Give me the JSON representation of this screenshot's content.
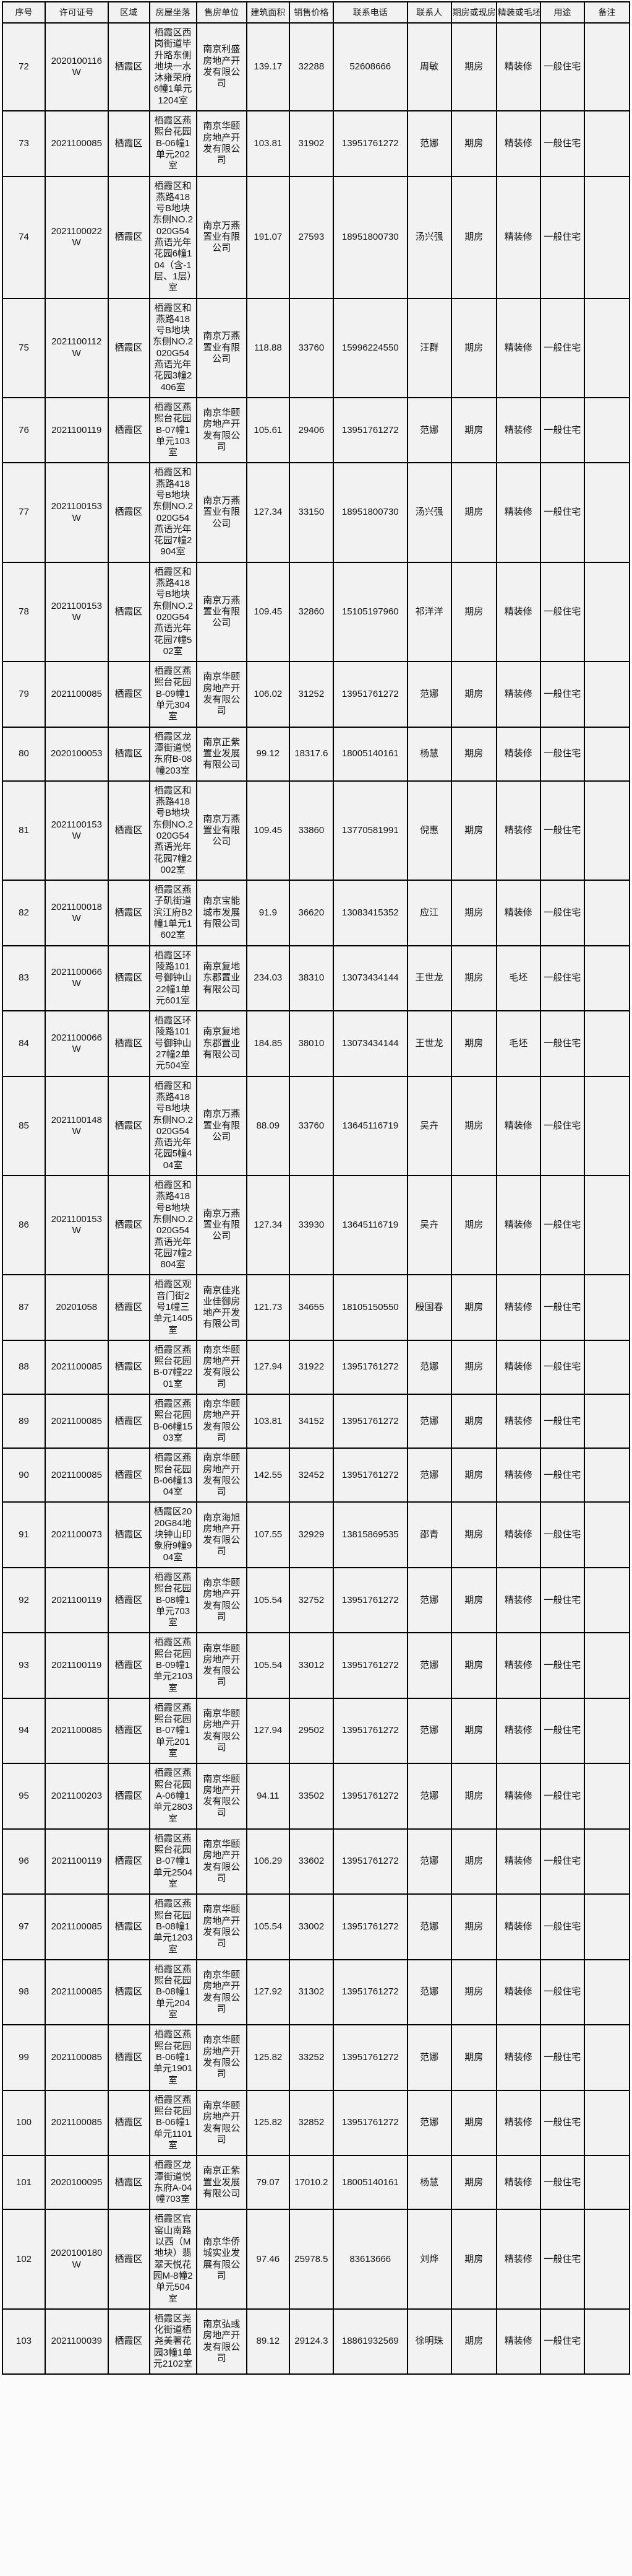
{
  "table": {
    "headers": [
      "序号",
      "许可证号",
      "区域",
      "房屋坐落",
      "售房单位",
      "建筑面积",
      "销售价格",
      "联系电话",
      "联系人",
      "期房或现房",
      "精装或毛坯",
      "用途",
      "备注"
    ],
    "col_keys": [
      "no",
      "license",
      "district",
      "address",
      "company",
      "area",
      "price",
      "phone",
      "contact",
      "delivery",
      "decoration",
      "usage",
      "remark"
    ],
    "rows": [
      [
        "72",
        "2020100116W",
        "栖霞区",
        "栖霞区西岗街道毕升路东侧地块一水沐雍荣府6幢1单元1204室",
        "南京利盛房地产开发有限公司",
        "139.17",
        "32288",
        "52608666",
        "周敏",
        "期房",
        "精装修",
        "一般住宅",
        ""
      ],
      [
        "73",
        "2021100085",
        "栖霞区",
        "栖霞区燕熙台花园B-06幢1单元202室",
        "南京华颐房地产开发有限公司",
        "103.81",
        "31902",
        "13951761272",
        "范娜",
        "期房",
        "精装修",
        "一般住宅",
        ""
      ],
      [
        "74",
        "2021100022W",
        "栖霞区",
        "栖霞区和燕路418号B地块东侧NO.2020G54燕语光年花园6幢104（含-1层、1层）室",
        "南京万燕置业有限公司",
        "191.07",
        "27593",
        "18951800730",
        "汤兴强",
        "期房",
        "精装修",
        "一般住宅",
        ""
      ],
      [
        "75",
        "2021100112W",
        "栖霞区",
        "栖霞区和燕路418号B地块东侧NO.2020G54燕语光年花园3幢2406室",
        "南京万燕置业有限公司",
        "118.88",
        "33760",
        "15996224550",
        "汪群",
        "期房",
        "精装修",
        "一般住宅",
        ""
      ],
      [
        "76",
        "2021100119",
        "栖霞区",
        "栖霞区燕熙台花园B-07幢1单元103室",
        "南京华颐房地产开发有限公司",
        "105.61",
        "29406",
        "13951761272",
        "范娜",
        "期房",
        "精装修",
        "一般住宅",
        ""
      ],
      [
        "77",
        "2021100153W",
        "栖霞区",
        "栖霞区和燕路418号B地块东侧NO.2020G54燕语光年花园7幢2904室",
        "南京万燕置业有限公司",
        "127.34",
        "33150",
        "18951800730",
        "汤兴强",
        "期房",
        "精装修",
        "一般住宅",
        ""
      ],
      [
        "78",
        "2021100153W",
        "栖霞区",
        "栖霞区和燕路418号B地块东侧NO.2020G54燕语光年花园7幢502室",
        "南京万燕置业有限公司",
        "109.45",
        "32860",
        "15105197960",
        "祁洋洋",
        "期房",
        "精装修",
        "一般住宅",
        ""
      ],
      [
        "79",
        "2021100085",
        "栖霞区",
        "栖霞区燕熙台花园B-09幢1单元304室",
        "南京华颐房地产开发有限公司",
        "106.02",
        "31252",
        "13951761272",
        "范娜",
        "期房",
        "精装修",
        "一般住宅",
        ""
      ],
      [
        "80",
        "2020100053",
        "栖霞区",
        "栖霞区龙潭街道悦东府B-08幢203室",
        "南京正紫置业发展有限公司",
        "99.12",
        "18317.6",
        "18005140161",
        "杨慧",
        "期房",
        "精装修",
        "一般住宅",
        ""
      ],
      [
        "81",
        "2021100153W",
        "栖霞区",
        "栖霞区和燕路418号B地块东侧NO.2020G54燕语光年花园7幢2002室",
        "南京万燕置业有限公司",
        "109.45",
        "33860",
        "13770581991",
        "倪惠",
        "期房",
        "精装修",
        "一般住宅",
        ""
      ],
      [
        "82",
        "2021100018W",
        "栖霞区",
        "栖霞区燕子矶街道滨江府B2幢1单元1602室",
        "南京宝能城市发展有限公司",
        "91.9",
        "36620",
        "13083415352",
        "应江",
        "期房",
        "精装修",
        "一般住宅",
        ""
      ],
      [
        "83",
        "2021100066W",
        "栖霞区",
        "栖霞区环陵路101号御钟山22幢1单元601室",
        "南京复地东郡置业有限公司",
        "234.03",
        "38310",
        "13073434144",
        "王世龙",
        "期房",
        "毛坯",
        "一般住宅",
        ""
      ],
      [
        "84",
        "2021100066W",
        "栖霞区",
        "栖霞区环陵路101号御钟山27幢2单元504室",
        "南京复地东郡置业有限公司",
        "184.85",
        "38010",
        "13073434144",
        "王世龙",
        "期房",
        "毛坯",
        "一般住宅",
        ""
      ],
      [
        "85",
        "2021100148W",
        "栖霞区",
        "栖霞区和燕路418号B地块东侧NO.2020G54燕语光年花园5幢404室",
        "南京万燕置业有限公司",
        "88.09",
        "33760",
        "13645116719",
        "吴卉",
        "期房",
        "精装修",
        "一般住宅",
        ""
      ],
      [
        "86",
        "2021100153W",
        "栖霞区",
        "栖霞区和燕路418号B地块东侧NO.2020G54燕语光年花园7幢2804室",
        "南京万燕置业有限公司",
        "127.34",
        "33930",
        "13645116719",
        "吴卉",
        "期房",
        "精装修",
        "一般住宅",
        ""
      ],
      [
        "87",
        "20201058",
        "栖霞区",
        "栖霞区观音门街2号1幢三单元1405室",
        "南京佳兆业佳御房地产开发有限公司",
        "121.73",
        "34655",
        "18105150550",
        "殷国春",
        "期房",
        "精装修",
        "一般住宅",
        ""
      ],
      [
        "88",
        "2021100085",
        "栖霞区",
        "栖霞区燕熙台花园B-07幢2201室",
        "南京华颐房地产开发有限公司",
        "127.94",
        "31922",
        "13951761272",
        "范娜",
        "期房",
        "精装修",
        "一般住宅",
        ""
      ],
      [
        "89",
        "2021100085",
        "栖霞区",
        "栖霞区燕熙台花园B-06幢1503室",
        "南京华颐房地产开发有限公司",
        "103.81",
        "34152",
        "13951761272",
        "范娜",
        "期房",
        "精装修",
        "一般住宅",
        ""
      ],
      [
        "90",
        "2021100085",
        "栖霞区",
        "栖霞区燕熙台花园B-06幢1304室",
        "南京华颐房地产开发有限公司",
        "142.55",
        "32452",
        "13951761272",
        "范娜",
        "期房",
        "精装修",
        "一般住宅",
        ""
      ],
      [
        "91",
        "2021100073",
        "栖霞区",
        "栖霞区2020G84地块钟山印象府9幢904室",
        "南京海旭房地产开发有限公司",
        "107.55",
        "32929",
        "13815869535",
        "邵青",
        "期房",
        "精装修",
        "一般住宅",
        ""
      ],
      [
        "92",
        "2021100119",
        "栖霞区",
        "栖霞区燕熙台花园B-08幢1单元703室",
        "南京华颐房地产开发有限公司",
        "105.54",
        "32752",
        "13951761272",
        "范娜",
        "期房",
        "精装修",
        "一般住宅",
        ""
      ],
      [
        "93",
        "2021100119",
        "栖霞区",
        "栖霞区燕熙台花园B-09幢1单元2103室",
        "南京华颐房地产开发有限公司",
        "105.54",
        "33012",
        "13951761272",
        "范娜",
        "期房",
        "精装修",
        "一般住宅",
        ""
      ],
      [
        "94",
        "2021100085",
        "栖霞区",
        "栖霞区燕熙台花园B-07幢1单元201室",
        "南京华颐房地产开发有限公司",
        "127.94",
        "29502",
        "13951761272",
        "范娜",
        "期房",
        "精装修",
        "一般住宅",
        ""
      ],
      [
        "95",
        "2021100203",
        "栖霞区",
        "栖霞区燕熙台花园A-06幢1单元2803室",
        "南京华颐房地产开发有限公司",
        "94.11",
        "33502",
        "13951761272",
        "范娜",
        "期房",
        "精装修",
        "一般住宅",
        ""
      ],
      [
        "96",
        "2021100119",
        "栖霞区",
        "栖霞区燕熙台花园B-07幢1单元2504室",
        "南京华颐房地产开发有限公司",
        "106.29",
        "33602",
        "13951761272",
        "范娜",
        "期房",
        "精装修",
        "一般住宅",
        ""
      ],
      [
        "97",
        "2021100085",
        "栖霞区",
        "栖霞区燕熙台花园B-08幢1单元1203室",
        "南京华颐房地产开发有限公司",
        "105.54",
        "33002",
        "13951761272",
        "范娜",
        "期房",
        "精装修",
        "一般住宅",
        ""
      ],
      [
        "98",
        "2021100085",
        "栖霞区",
        "栖霞区燕熙台花园B-08幢1单元204室",
        "南京华颐房地产开发有限公司",
        "127.92",
        "31302",
        "13951761272",
        "范娜",
        "期房",
        "精装修",
        "一般住宅",
        ""
      ],
      [
        "99",
        "2021100085",
        "栖霞区",
        "栖霞区燕熙台花园B-06幢1单元1901室",
        "南京华颐房地产开发有限公司",
        "125.82",
        "33252",
        "13951761272",
        "范娜",
        "期房",
        "精装修",
        "一般住宅",
        ""
      ],
      [
        "100",
        "2021100085",
        "栖霞区",
        "栖霞区燕熙台花园B-06幢1单元1101室",
        "南京华颐房地产开发有限公司",
        "125.82",
        "32852",
        "13951761272",
        "范娜",
        "期房",
        "精装修",
        "一般住宅",
        ""
      ],
      [
        "101",
        "2020100095",
        "栖霞区",
        "栖霞区龙潭街道悦东府A-04幢703室",
        "南京正紫置业发展有限公司",
        "79.07",
        "17010.2",
        "18005140161",
        "杨慧",
        "期房",
        "精装修",
        "一般住宅",
        ""
      ],
      [
        "102",
        "2020100180W",
        "栖霞区",
        "栖霞区官窑山南路以西（M地块）翡翠天悦花园M-8幢2单元504室",
        "南京华侨城实业发展有限公司",
        "97.46",
        "25978.5",
        "83613666",
        "刘烨",
        "期房",
        "精装修",
        "一般住宅",
        ""
      ],
      [
        "103",
        "2021100039",
        "栖霞区",
        "栖霞区尧化街道栖尧美著花园3幢1单元2102室",
        "南京弘彧房地产开发有限公司",
        "89.12",
        "29124.3",
        "18861932569",
        "徐明珠",
        "期房",
        "精装修",
        "一般住宅",
        ""
      ]
    ]
  }
}
